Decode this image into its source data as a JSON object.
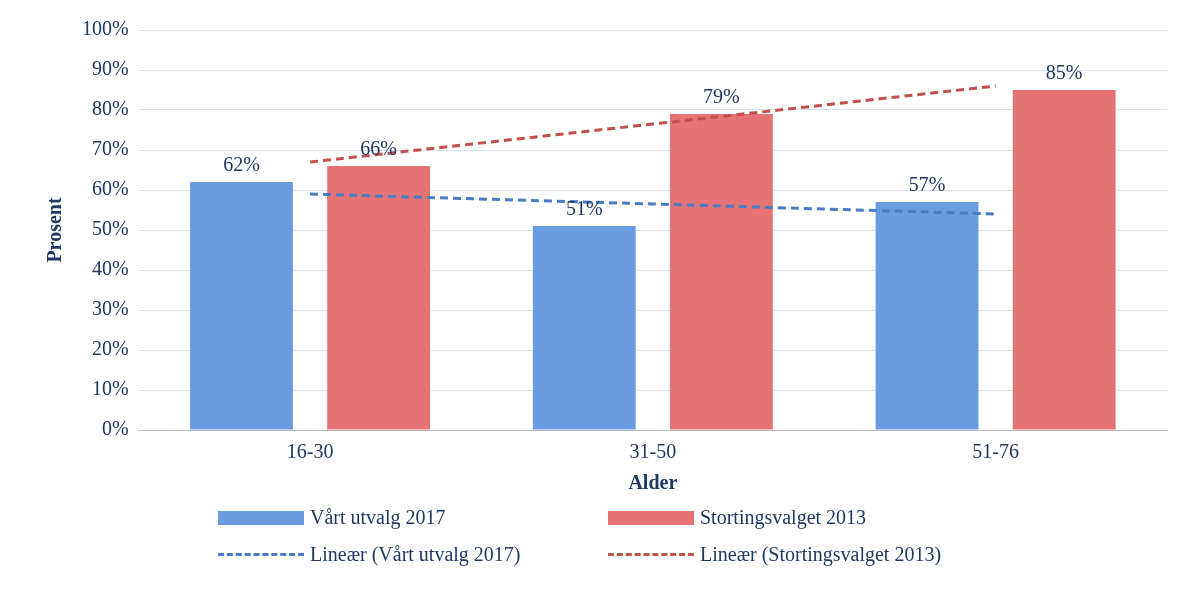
{
  "chart_data": {
    "type": "bar",
    "xlabel": "Alder",
    "ylabel": "Prosent",
    "categories": [
      "16-30",
      "31-50",
      "51-76"
    ],
    "series": [
      {
        "name": "Vårt utvalg 2017",
        "color": "#6a9be0",
        "values": [
          62,
          51,
          57
        ],
        "value_labels": [
          "62%",
          "51%",
          "57%"
        ]
      },
      {
        "name": "Stortingsvalget 2013",
        "color": "#e57373",
        "values": [
          66,
          79,
          85
        ],
        "value_labels": [
          "66%",
          "79%",
          "85%"
        ]
      },
      {
        "name": "Lineær (Vårt utvalg 2017)",
        "type": "line",
        "color": "#4a7cc4",
        "line_style": "dashed",
        "marker": "none",
        "x": [
          "16-30",
          "31-50",
          "51-76"
        ],
        "values": [
          59,
          56.5,
          54
        ]
      },
      {
        "name": "Lineær (Stortingsvalget 2013)",
        "type": "line",
        "color": "#c0504d",
        "line_style": "dashed",
        "marker": "none",
        "x": [
          "16-30",
          "31-50",
          "51-76"
        ],
        "values": [
          67,
          76.5,
          86
        ]
      }
    ],
    "ylim": [
      0,
      100
    ],
    "yticks": [
      {
        "value": 0,
        "label": "0%"
      },
      {
        "value": 10,
        "label": "10%"
      },
      {
        "value": 20,
        "label": "20%"
      },
      {
        "value": 30,
        "label": "30%"
      },
      {
        "value": 40,
        "label": "40%"
      },
      {
        "value": 50,
        "label": "50%"
      },
      {
        "value": 60,
        "label": "60%"
      },
      {
        "value": 70,
        "label": "70%"
      },
      {
        "value": 80,
        "label": "80%"
      },
      {
        "value": 90,
        "label": "90%"
      },
      {
        "value": 100,
        "label": "100%"
      }
    ],
    "grid": "y",
    "legend": "bottom"
  }
}
